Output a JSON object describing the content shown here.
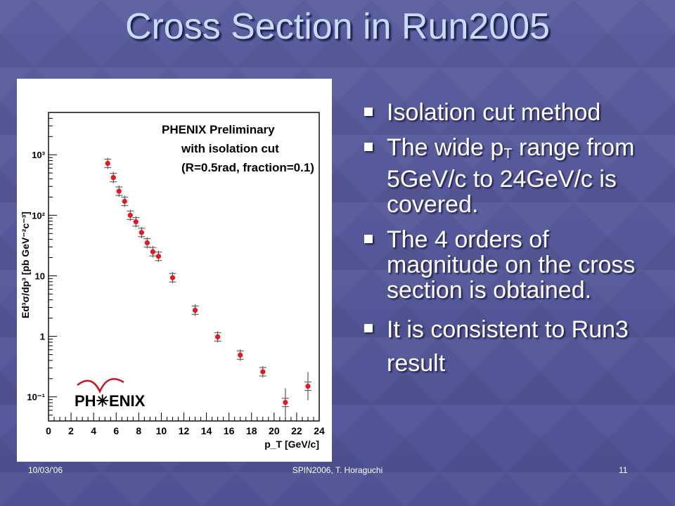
{
  "slide": {
    "title": "Cross Section in Run2005",
    "bullets": [
      "Isolation cut method",
      {
        "pre": "The wide p",
        "sub": "T",
        "post": " range from 5GeV/c to 24GeV/c is covered."
      },
      "The 4 orders of magnitude on the cross section is obtained.",
      "It is consistent to Run3 result"
    ],
    "footer": {
      "date": "10/03/'06",
      "center": "SPIN2006, T. Horaguchi",
      "page": "11"
    }
  },
  "chart_data": {
    "type": "scatter",
    "annotation": [
      "PHENIX Preliminary",
      "with isolation cut",
      "(R=0.5rad, fraction=0.1)"
    ],
    "ylabel": "Ed³σ/dp³ [pb GeV⁻²c⁻³]",
    "xlabel": "p_T [GeV/c]",
    "logo_text": "PH✳ENIX",
    "xlim": [
      0,
      24
    ],
    "ylim": [
      0.04,
      5000
    ],
    "yscale": "log",
    "xticks": [
      0,
      2,
      4,
      6,
      8,
      10,
      12,
      14,
      16,
      18,
      20,
      22,
      24
    ],
    "ytick_labels": [
      "10³",
      "10²",
      "10",
      "1",
      "10⁻¹"
    ],
    "ytick_values": [
      1000,
      100,
      10,
      1,
      0.1
    ],
    "point_color": "#e8141e",
    "series": [
      {
        "x": [
          5.25,
          5.75,
          6.25,
          6.75,
          7.25,
          7.75,
          8.25,
          8.75,
          9.25,
          9.75,
          11,
          13,
          15,
          17,
          19,
          21,
          23
        ],
        "y": [
          720,
          420,
          250,
          170,
          100,
          78,
          52,
          35,
          25,
          21,
          9.3,
          2.7,
          0.98,
          0.49,
          0.26,
          0.081,
          0.15
        ]
      }
    ]
  }
}
